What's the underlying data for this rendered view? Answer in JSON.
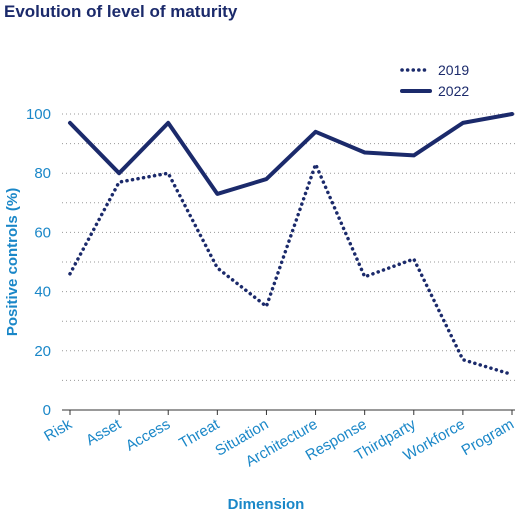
{
  "chart_data": {
    "type": "line",
    "title": "Evolution of level of maturity",
    "xlabel": "Dimension",
    "ylabel": "Positive controls (%)",
    "categories": [
      "Risk",
      "Asset",
      "Access",
      "Threat",
      "Situation",
      "Architecture",
      "Response",
      "Thirdparty",
      "Workforce",
      "Program"
    ],
    "ylim": [
      0,
      100
    ],
    "yticks": [
      0,
      20,
      40,
      60,
      80,
      100
    ],
    "grid": true,
    "legend_position": "top-right",
    "series": [
      {
        "name": "2019",
        "style": "dotted",
        "values": [
          46,
          77,
          80,
          48,
          35,
          83,
          45,
          51,
          17,
          12
        ]
      },
      {
        "name": "2022",
        "style": "solid",
        "values": [
          97,
          80,
          97,
          73,
          78,
          94,
          87,
          86,
          97,
          100
        ]
      }
    ]
  },
  "colors": {
    "title": "#1b2a6b",
    "axis_text": "#1a87c8",
    "series_line": "#1b2a6b",
    "grid": "#9a9a9a"
  }
}
